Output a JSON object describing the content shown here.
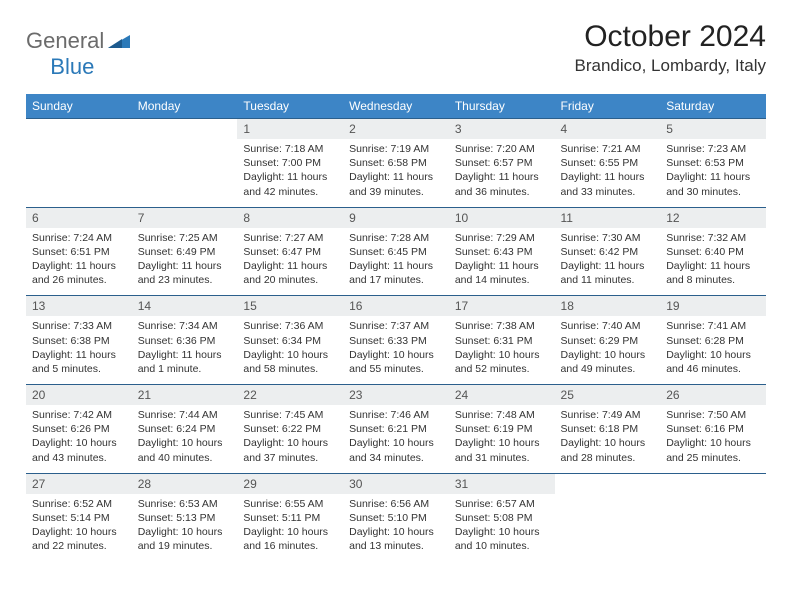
{
  "logo": {
    "gen": "General",
    "blue": "Blue"
  },
  "title": "October 2024",
  "location": "Brandico, Lombardy, Italy",
  "colors": {
    "header_bg": "#3d85c6",
    "header_text": "#ffffff",
    "daynum_bg": "#eceeef",
    "rule": "#2b5f8c",
    "logo_gray": "#6b6b6b",
    "logo_blue": "#2b79b8"
  },
  "dayNames": [
    "Sunday",
    "Monday",
    "Tuesday",
    "Wednesday",
    "Thursday",
    "Friday",
    "Saturday"
  ],
  "weeks": [
    [
      {
        "n": "",
        "l1": "",
        "l2": "",
        "l3": "",
        "l4": ""
      },
      {
        "n": "",
        "l1": "",
        "l2": "",
        "l3": "",
        "l4": ""
      },
      {
        "n": "1",
        "l1": "Sunrise: 7:18 AM",
        "l2": "Sunset: 7:00 PM",
        "l3": "Daylight: 11 hours",
        "l4": "and 42 minutes."
      },
      {
        "n": "2",
        "l1": "Sunrise: 7:19 AM",
        "l2": "Sunset: 6:58 PM",
        "l3": "Daylight: 11 hours",
        "l4": "and 39 minutes."
      },
      {
        "n": "3",
        "l1": "Sunrise: 7:20 AM",
        "l2": "Sunset: 6:57 PM",
        "l3": "Daylight: 11 hours",
        "l4": "and 36 minutes."
      },
      {
        "n": "4",
        "l1": "Sunrise: 7:21 AM",
        "l2": "Sunset: 6:55 PM",
        "l3": "Daylight: 11 hours",
        "l4": "and 33 minutes."
      },
      {
        "n": "5",
        "l1": "Sunrise: 7:23 AM",
        "l2": "Sunset: 6:53 PM",
        "l3": "Daylight: 11 hours",
        "l4": "and 30 minutes."
      }
    ],
    [
      {
        "n": "6",
        "l1": "Sunrise: 7:24 AM",
        "l2": "Sunset: 6:51 PM",
        "l3": "Daylight: 11 hours",
        "l4": "and 26 minutes."
      },
      {
        "n": "7",
        "l1": "Sunrise: 7:25 AM",
        "l2": "Sunset: 6:49 PM",
        "l3": "Daylight: 11 hours",
        "l4": "and 23 minutes."
      },
      {
        "n": "8",
        "l1": "Sunrise: 7:27 AM",
        "l2": "Sunset: 6:47 PM",
        "l3": "Daylight: 11 hours",
        "l4": "and 20 minutes."
      },
      {
        "n": "9",
        "l1": "Sunrise: 7:28 AM",
        "l2": "Sunset: 6:45 PM",
        "l3": "Daylight: 11 hours",
        "l4": "and 17 minutes."
      },
      {
        "n": "10",
        "l1": "Sunrise: 7:29 AM",
        "l2": "Sunset: 6:43 PM",
        "l3": "Daylight: 11 hours",
        "l4": "and 14 minutes."
      },
      {
        "n": "11",
        "l1": "Sunrise: 7:30 AM",
        "l2": "Sunset: 6:42 PM",
        "l3": "Daylight: 11 hours",
        "l4": "and 11 minutes."
      },
      {
        "n": "12",
        "l1": "Sunrise: 7:32 AM",
        "l2": "Sunset: 6:40 PM",
        "l3": "Daylight: 11 hours",
        "l4": "and 8 minutes."
      }
    ],
    [
      {
        "n": "13",
        "l1": "Sunrise: 7:33 AM",
        "l2": "Sunset: 6:38 PM",
        "l3": "Daylight: 11 hours",
        "l4": "and 5 minutes."
      },
      {
        "n": "14",
        "l1": "Sunrise: 7:34 AM",
        "l2": "Sunset: 6:36 PM",
        "l3": "Daylight: 11 hours",
        "l4": "and 1 minute."
      },
      {
        "n": "15",
        "l1": "Sunrise: 7:36 AM",
        "l2": "Sunset: 6:34 PM",
        "l3": "Daylight: 10 hours",
        "l4": "and 58 minutes."
      },
      {
        "n": "16",
        "l1": "Sunrise: 7:37 AM",
        "l2": "Sunset: 6:33 PM",
        "l3": "Daylight: 10 hours",
        "l4": "and 55 minutes."
      },
      {
        "n": "17",
        "l1": "Sunrise: 7:38 AM",
        "l2": "Sunset: 6:31 PM",
        "l3": "Daylight: 10 hours",
        "l4": "and 52 minutes."
      },
      {
        "n": "18",
        "l1": "Sunrise: 7:40 AM",
        "l2": "Sunset: 6:29 PM",
        "l3": "Daylight: 10 hours",
        "l4": "and 49 minutes."
      },
      {
        "n": "19",
        "l1": "Sunrise: 7:41 AM",
        "l2": "Sunset: 6:28 PM",
        "l3": "Daylight: 10 hours",
        "l4": "and 46 minutes."
      }
    ],
    [
      {
        "n": "20",
        "l1": "Sunrise: 7:42 AM",
        "l2": "Sunset: 6:26 PM",
        "l3": "Daylight: 10 hours",
        "l4": "and 43 minutes."
      },
      {
        "n": "21",
        "l1": "Sunrise: 7:44 AM",
        "l2": "Sunset: 6:24 PM",
        "l3": "Daylight: 10 hours",
        "l4": "and 40 minutes."
      },
      {
        "n": "22",
        "l1": "Sunrise: 7:45 AM",
        "l2": "Sunset: 6:22 PM",
        "l3": "Daylight: 10 hours",
        "l4": "and 37 minutes."
      },
      {
        "n": "23",
        "l1": "Sunrise: 7:46 AM",
        "l2": "Sunset: 6:21 PM",
        "l3": "Daylight: 10 hours",
        "l4": "and 34 minutes."
      },
      {
        "n": "24",
        "l1": "Sunrise: 7:48 AM",
        "l2": "Sunset: 6:19 PM",
        "l3": "Daylight: 10 hours",
        "l4": "and 31 minutes."
      },
      {
        "n": "25",
        "l1": "Sunrise: 7:49 AM",
        "l2": "Sunset: 6:18 PM",
        "l3": "Daylight: 10 hours",
        "l4": "and 28 minutes."
      },
      {
        "n": "26",
        "l1": "Sunrise: 7:50 AM",
        "l2": "Sunset: 6:16 PM",
        "l3": "Daylight: 10 hours",
        "l4": "and 25 minutes."
      }
    ],
    [
      {
        "n": "27",
        "l1": "Sunrise: 6:52 AM",
        "l2": "Sunset: 5:14 PM",
        "l3": "Daylight: 10 hours",
        "l4": "and 22 minutes."
      },
      {
        "n": "28",
        "l1": "Sunrise: 6:53 AM",
        "l2": "Sunset: 5:13 PM",
        "l3": "Daylight: 10 hours",
        "l4": "and 19 minutes."
      },
      {
        "n": "29",
        "l1": "Sunrise: 6:55 AM",
        "l2": "Sunset: 5:11 PM",
        "l3": "Daylight: 10 hours",
        "l4": "and 16 minutes."
      },
      {
        "n": "30",
        "l1": "Sunrise: 6:56 AM",
        "l2": "Sunset: 5:10 PM",
        "l3": "Daylight: 10 hours",
        "l4": "and 13 minutes."
      },
      {
        "n": "31",
        "l1": "Sunrise: 6:57 AM",
        "l2": "Sunset: 5:08 PM",
        "l3": "Daylight: 10 hours",
        "l4": "and 10 minutes."
      },
      {
        "n": "",
        "l1": "",
        "l2": "",
        "l3": "",
        "l4": ""
      },
      {
        "n": "",
        "l1": "",
        "l2": "",
        "l3": "",
        "l4": ""
      }
    ]
  ]
}
